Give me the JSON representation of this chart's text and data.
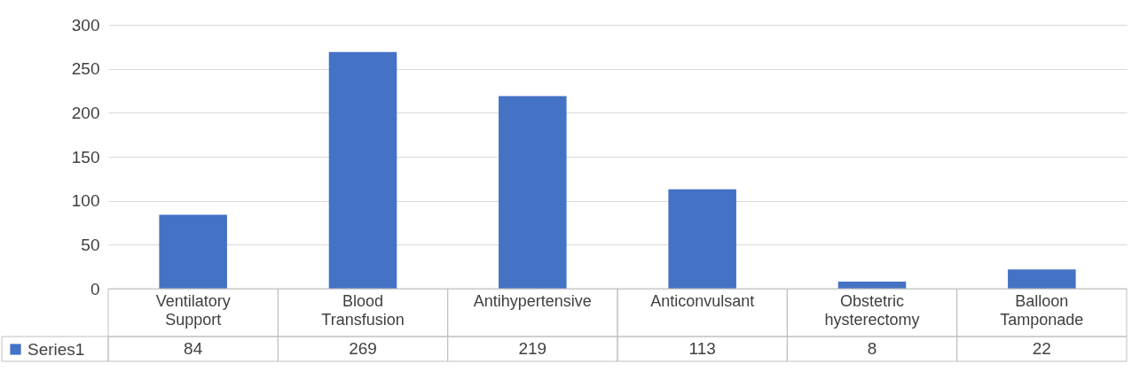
{
  "chart_data": {
    "type": "bar",
    "categories": [
      "Ventilatory Support",
      "Blood Transfusion",
      "Antihypertensive",
      "Anticonvulsant",
      "Obstetric hysterectomy",
      "Balloon Tamponade"
    ],
    "series": [
      {
        "name": "Series1",
        "color": "#4472c4",
        "values": [
          84,
          269,
          219,
          113,
          8,
          22
        ]
      }
    ],
    "ylim": [
      0,
      300
    ],
    "yticks": [
      0,
      50,
      100,
      150,
      200,
      250,
      300
    ],
    "grid": "y",
    "data_labels": true,
    "legend": "bottom left"
  }
}
